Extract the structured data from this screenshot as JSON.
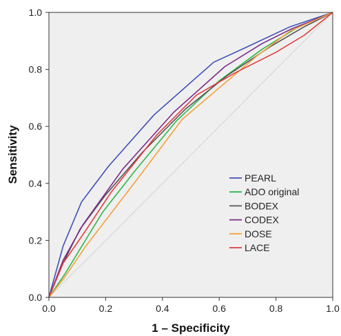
{
  "chart_data": {
    "type": "line",
    "title": "",
    "xlabel": "1 – Specificity",
    "ylabel": "Sensitivity",
    "xlim": [
      0,
      1
    ],
    "ylim": [
      0,
      1
    ],
    "x_ticks": [
      "0.0",
      "0.2",
      "0.4",
      "0.6",
      "0.8",
      "1.0"
    ],
    "y_ticks": [
      "0.0",
      "0.2",
      "0.4",
      "0.6",
      "0.8",
      "1.0"
    ],
    "grid": false,
    "legend_position": "lower-right",
    "reference_line": {
      "from": [
        0,
        0
      ],
      "to": [
        1,
        1
      ],
      "color": "#d6d6d6"
    },
    "series": [
      {
        "name": "PEARL",
        "color": "#3f4fb5",
        "x": [
          0,
          0.05,
          0.115,
          0.21,
          0.37,
          0.58,
          0.7,
          0.85,
          1.0
        ],
        "y": [
          0,
          0.18,
          0.335,
          0.46,
          0.64,
          0.825,
          0.88,
          0.95,
          1.0
        ]
      },
      {
        "name": "ADO original",
        "color": "#2db84a",
        "x": [
          0,
          0.055,
          0.11,
          0.19,
          0.3,
          0.45,
          0.6,
          0.75,
          0.88,
          1.0
        ],
        "y": [
          0,
          0.08,
          0.17,
          0.3,
          0.44,
          0.62,
          0.76,
          0.87,
          0.95,
          1.0
        ]
      },
      {
        "name": "BODEX",
        "color": "#555555",
        "x": [
          0,
          0.05,
          0.11,
          0.2,
          0.33,
          0.48,
          0.63,
          0.78,
          0.9,
          1.0
        ],
        "y": [
          0,
          0.12,
          0.24,
          0.36,
          0.51,
          0.66,
          0.78,
          0.88,
          0.95,
          1.0
        ]
      },
      {
        "name": "CODEX",
        "color": "#7a2a8a",
        "x": [
          0,
          0.05,
          0.12,
          0.26,
          0.44,
          0.62,
          0.75,
          0.85,
          1.0
        ],
        "y": [
          0,
          0.13,
          0.255,
          0.45,
          0.65,
          0.81,
          0.89,
          0.94,
          1.0
        ]
      },
      {
        "name": "DOSE",
        "color": "#f5a03c",
        "x": [
          0,
          0.055,
          0.13,
          0.3,
          0.47,
          0.6,
          0.73,
          0.85,
          1.0
        ],
        "y": [
          0,
          0.07,
          0.18,
          0.4,
          0.625,
          0.735,
          0.845,
          0.935,
          1.0
        ]
      },
      {
        "name": "LACE",
        "color": "#e03c3c",
        "x": [
          0,
          0.05,
          0.12,
          0.22,
          0.38,
          0.52,
          0.66,
          0.8,
          0.9,
          1.0
        ],
        "y": [
          0,
          0.12,
          0.22,
          0.37,
          0.57,
          0.71,
          0.79,
          0.86,
          0.92,
          1.0
        ]
      }
    ]
  }
}
